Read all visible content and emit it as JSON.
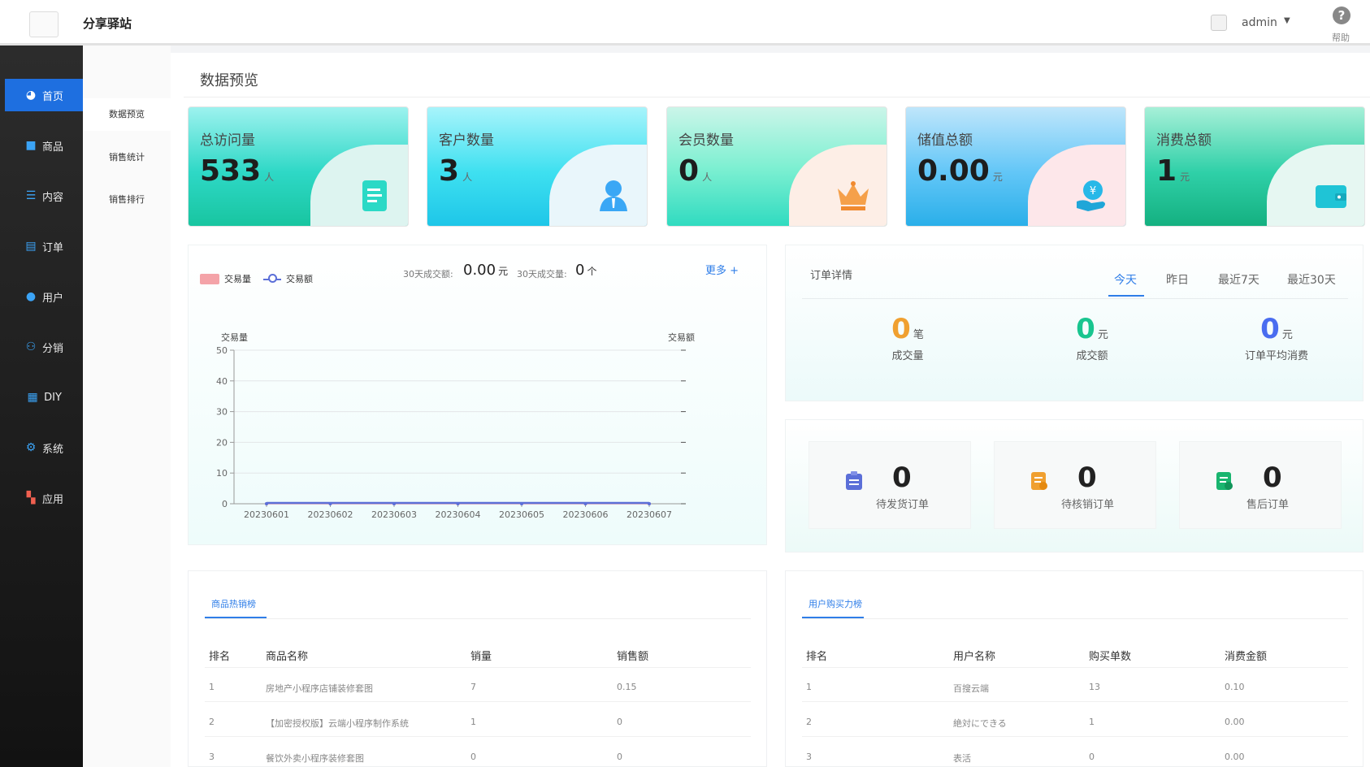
{
  "header": {
    "brand": "分享驿站",
    "user_name": "admin",
    "help_label": "帮助",
    "help_icon": "?"
  },
  "sidebar": {
    "items": [
      {
        "label": "首页",
        "icon": "pie-chart-icon",
        "active": true
      },
      {
        "label": "商品",
        "icon": "shopping-bag-icon"
      },
      {
        "label": "内容",
        "icon": "list-icon"
      },
      {
        "label": "订单",
        "icon": "order-icon"
      },
      {
        "label": "用户",
        "icon": "user-icon"
      },
      {
        "label": "分销",
        "icon": "users-icon"
      },
      {
        "label": "DIY",
        "icon": "layout-icon"
      },
      {
        "label": "系统",
        "icon": "gear-icon"
      },
      {
        "label": "应用",
        "icon": "apps-icon"
      }
    ]
  },
  "subnav": {
    "items": [
      "数据预览",
      "销售统计",
      "销售排行"
    ]
  },
  "page": {
    "title": "数据预览"
  },
  "cards": [
    {
      "title": "总访问量",
      "value": "533",
      "unit": "人",
      "icon": "document-icon"
    },
    {
      "title": "客户数量",
      "value": "3",
      "unit": "人",
      "icon": "customer-icon"
    },
    {
      "title": "会员数量",
      "value": "0",
      "unit": "人",
      "icon": "crown-icon"
    },
    {
      "title": "储值总额",
      "value": "0.00",
      "unit": "元",
      "icon": "money-hand-icon"
    },
    {
      "title": "消费总额",
      "value": "1",
      "unit": "元",
      "icon": "wallet-icon"
    }
  ],
  "chart_panel": {
    "legend_volume": "交易量",
    "legend_amount": "交易额",
    "stat_amount_label": "30天成交额:",
    "stat_amount_value": "0.00",
    "stat_amount_unit": "元",
    "stat_volume_label": "30天成交量:",
    "stat_volume_value": "0",
    "stat_volume_unit": "个",
    "more_link": "更多 +"
  },
  "chart_data": {
    "type": "line",
    "categories": [
      "20230601",
      "20230602",
      "20230603",
      "20230604",
      "20230605",
      "20230606",
      "20230607"
    ],
    "series": [
      {
        "name": "交易量",
        "values": [
          0,
          0,
          0,
          0,
          0,
          0,
          0
        ]
      },
      {
        "name": "交易额",
        "values": [
          0,
          0,
          0,
          0,
          0,
          0,
          0
        ]
      }
    ],
    "ylabel": "交易量",
    "ylabel_right": "交易额",
    "yticks": [
      0,
      10,
      20,
      30,
      40,
      50
    ],
    "ylim": [
      0,
      50
    ],
    "grid": true,
    "legend": "top-left",
    "colors": {
      "volume": "#f4a3a8",
      "amount": "#5b6fd8"
    }
  },
  "orders": {
    "title": "订单详情",
    "tabs": [
      {
        "label": "今天",
        "active": true
      },
      {
        "label": "昨日"
      },
      {
        "label": "最近7天"
      },
      {
        "label": "最近30天"
      }
    ],
    "metrics": [
      {
        "value": "0",
        "unit": "笔",
        "label": "成交量",
        "color": "#f0a030"
      },
      {
        "value": "0",
        "unit": "元",
        "label": "成交额",
        "color": "#19c58f"
      },
      {
        "value": "0",
        "unit": "元",
        "label": "订单平均消费",
        "color": "#4a6df0"
      }
    ]
  },
  "pending": [
    {
      "value": "0",
      "label": "待发货订单",
      "icon": "clipboard-icon",
      "color": "#5b6fd8"
    },
    {
      "value": "0",
      "label": "待核销订单",
      "icon": "verify-order-icon",
      "color": "#f0a030"
    },
    {
      "value": "0",
      "label": "售后订单",
      "icon": "after-sale-icon",
      "color": "#19b56f"
    }
  ],
  "hot_products": {
    "tab": "商品热销榜",
    "headers": [
      "排名",
      "商品名称",
      "销量",
      "销售额"
    ],
    "rows": [
      [
        "1",
        "房地产小程序店铺装修套图",
        "7",
        "0.15"
      ],
      [
        "2",
        "【加密授权版】云端小程序制作系统",
        "1",
        "0"
      ],
      [
        "3",
        "餐饮外卖小程序装修套图",
        "0",
        "0"
      ]
    ]
  },
  "user_power": {
    "tab": "用户购买力榜",
    "headers": [
      "排名",
      "用户名称",
      "购买单数",
      "消费金额"
    ],
    "rows": [
      [
        "1",
        "百搜云端",
        "13",
        "0.10"
      ],
      [
        "2",
        "絶対にできる",
        "1",
        "0.00"
      ],
      [
        "3",
        "表活",
        "0",
        "0.00"
      ]
    ]
  }
}
